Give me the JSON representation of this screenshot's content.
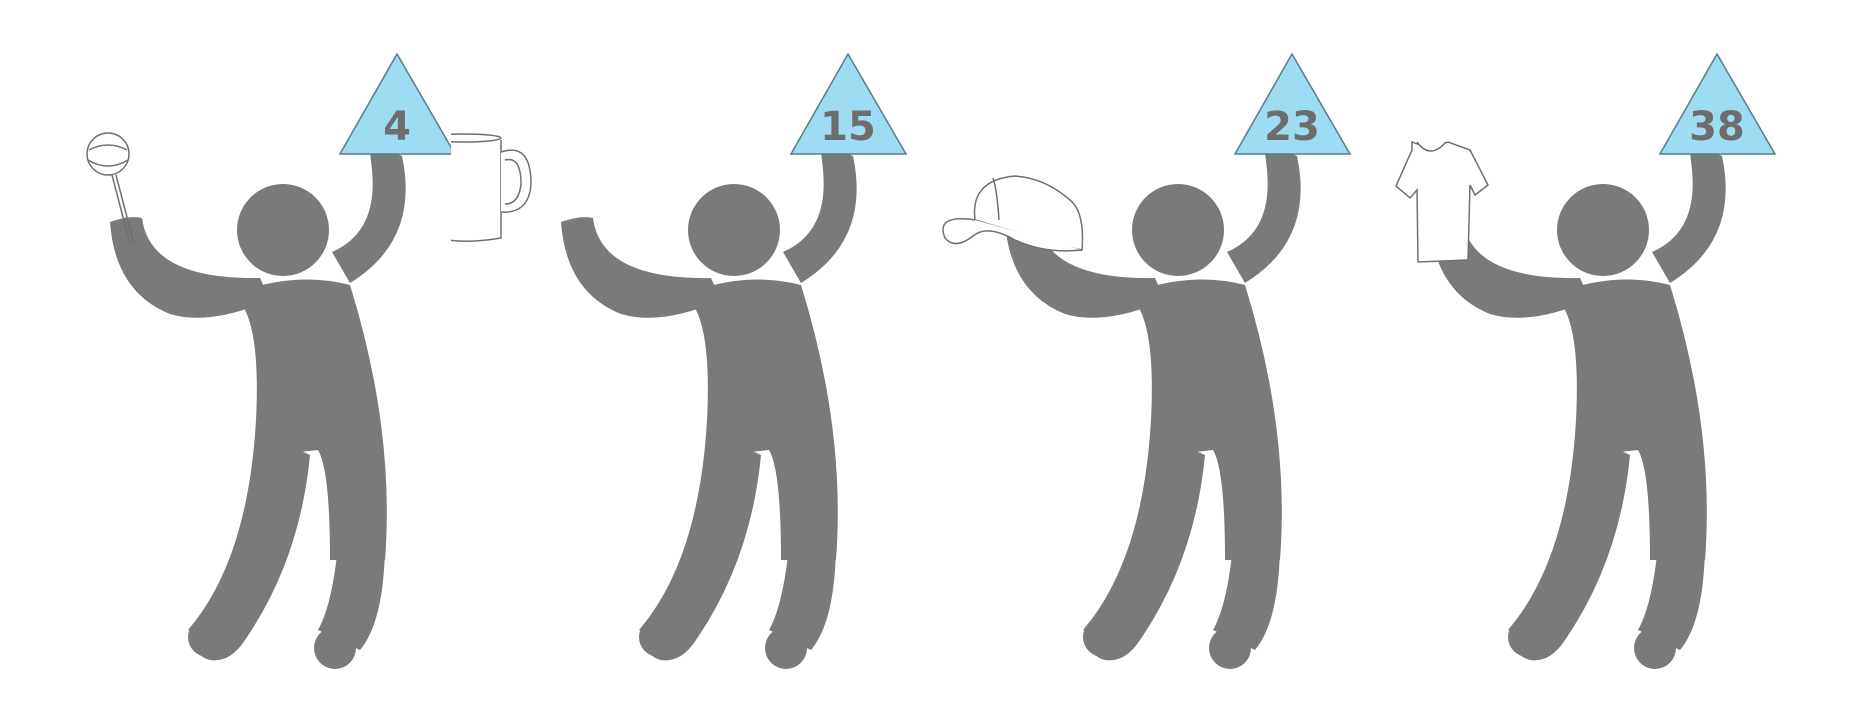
{
  "figures": [
    {
      "item": "lollipop-icon",
      "price": "4"
    },
    {
      "item": "mug-icon",
      "price": "15"
    },
    {
      "item": "cap-icon",
      "price": "23"
    },
    {
      "item": "tshirt-icon",
      "price": "38"
    }
  ],
  "colors": {
    "person": "#7a7a7a",
    "sign": "#9ddcf3",
    "sign_stroke": "#5b7b88",
    "item_stroke": "#6f6f6f",
    "price_text": "#6d6d6d"
  }
}
